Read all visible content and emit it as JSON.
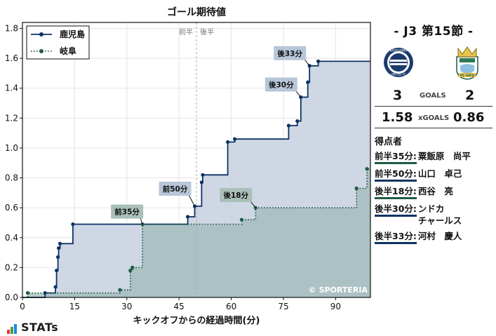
{
  "chart_data": {
    "type": "line",
    "title": "ゴール期待値",
    "xlabel": "キックオフからの経過時間(分)",
    "ylabel": "",
    "xlim": [
      0,
      100
    ],
    "ylim": [
      0,
      1.84
    ],
    "x_ticks": [
      0,
      15,
      30,
      45,
      60,
      75,
      90
    ],
    "y_ticks": [
      0.0,
      0.2,
      0.4,
      0.6,
      0.8,
      1.0,
      1.2,
      1.4,
      1.6,
      1.8
    ],
    "y_tick_labels": [
      "0.0",
      "0.2",
      "0.4",
      "0.6",
      "0.8",
      "1.0",
      "1.2",
      "1.4",
      "1.6",
      "1.8"
    ],
    "half_labels": {
      "first": "前半",
      "second": "後半"
    },
    "half_x": 50,
    "grid": true,
    "legend_position": "top-left",
    "watermark": "© SPORTERIA",
    "series": [
      {
        "name": "鹿児島",
        "color": "#0d3264",
        "fill": "#c5d0de",
        "style": "solid",
        "points": [
          [
            0,
            0
          ],
          [
            6.5,
            0.03
          ],
          [
            9.5,
            0.07
          ],
          [
            9.8,
            0.18
          ],
          [
            10.2,
            0.27
          ],
          [
            10.4,
            0.33
          ],
          [
            10.8,
            0.36
          ],
          [
            14.5,
            0.49
          ],
          [
            47.5,
            0.54
          ],
          [
            49.5,
            0.61
          ],
          [
            51.5,
            0.77
          ],
          [
            51.8,
            0.82
          ],
          [
            59,
            1.04
          ],
          [
            61,
            1.06
          ],
          [
            76.5,
            1.15
          ],
          [
            79,
            1.18
          ],
          [
            80,
            1.34
          ],
          [
            82,
            1.44
          ],
          [
            82.5,
            1.55
          ],
          [
            85,
            1.58
          ],
          [
            100,
            1.58
          ]
        ]
      },
      {
        "name": "岐阜",
        "color": "#1f5b43",
        "fill": "#9fb9b9",
        "style": "dotted",
        "points": [
          [
            0,
            0
          ],
          [
            1.5,
            0.03
          ],
          [
            28,
            0.05
          ],
          [
            31,
            0.18
          ],
          [
            31.6,
            0.2
          ],
          [
            34.5,
            0.49
          ],
          [
            63,
            0.52
          ],
          [
            67,
            0.6
          ],
          [
            96,
            0.73
          ],
          [
            99,
            0.86
          ],
          [
            100,
            0.86
          ]
        ]
      }
    ],
    "annotations": [
      {
        "text": "前35分",
        "x": 34.5,
        "y": 0.49,
        "team": "away"
      },
      {
        "text": "前50分",
        "x": 49.5,
        "y": 0.61,
        "team": "home"
      },
      {
        "text": "後18分",
        "x": 67,
        "y": 0.6,
        "team": "away"
      },
      {
        "text": "後30分",
        "x": 80,
        "y": 1.34,
        "team": "home"
      },
      {
        "text": "後33分",
        "x": 82.5,
        "y": 1.55,
        "team": "home"
      }
    ]
  },
  "panel": {
    "match_title": "-  J3 第15節  -",
    "home_score": "3",
    "away_score": "2",
    "goals_label": "GOALS",
    "home_xg": "1.58",
    "away_xg": "0.86",
    "xg_label": "xGOALS",
    "scorers_title": "得点者",
    "scorers": [
      {
        "time": "前半35分:",
        "name": "粟飯原　尚平",
        "team": "away"
      },
      {
        "time": "前半50分:",
        "name": "山口　卓己",
        "team": "home"
      },
      {
        "time": "後半18分:",
        "name": "西谷　亮",
        "team": "away"
      },
      {
        "time": "後半30分:",
        "name": "ンドカ\nチャールス",
        "team": "home"
      },
      {
        "time": "後半33分:",
        "name": "河村　慶人",
        "team": "home"
      }
    ],
    "home_logo_text": "KAGOSHIMA UNITED FC",
    "away_logo_text": "FC GIFU"
  },
  "footer": {
    "brand": "STATs"
  },
  "colors": {
    "home": "#0d3264",
    "away": "#1f5b43",
    "home_fill": "#c5d0de",
    "away_fill": "#9fb9b9"
  }
}
